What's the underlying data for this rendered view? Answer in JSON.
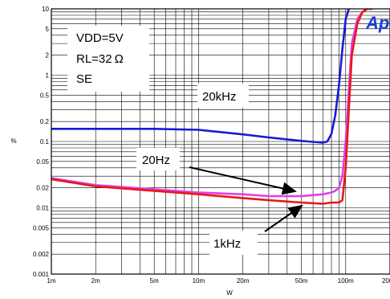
{
  "chart_data": {
    "type": "line",
    "xlabel": "W",
    "ylabel": "%",
    "x_scale": "log",
    "y_scale": "log",
    "xlim": [
      0.001,
      0.2
    ],
    "ylim": [
      0.001,
      10
    ],
    "grid": true,
    "x_ticks": [
      {
        "value": 0.001,
        "label": "1m"
      },
      {
        "value": 0.002,
        "label": "2m"
      },
      {
        "value": 0.005,
        "label": "5m"
      },
      {
        "value": 0.01,
        "label": "10m"
      },
      {
        "value": 0.02,
        "label": "20m"
      },
      {
        "value": 0.05,
        "label": "50m"
      },
      {
        "value": 0.1,
        "label": "100m"
      },
      {
        "value": 0.2,
        "label": "200m"
      }
    ],
    "y_ticks": [
      {
        "value": 10,
        "label": "10"
      },
      {
        "value": 5,
        "label": "5"
      },
      {
        "value": 2,
        "label": "2"
      },
      {
        "value": 1,
        "label": "1"
      },
      {
        "value": 0.5,
        "label": "0.5"
      },
      {
        "value": 0.2,
        "label": "0.2"
      },
      {
        "value": 0.1,
        "label": "0.1"
      },
      {
        "value": 0.05,
        "label": "0.05"
      },
      {
        "value": 0.02,
        "label": "0.02"
      },
      {
        "value": 0.01,
        "label": "0.01"
      },
      {
        "value": 0.005,
        "label": "0.005"
      },
      {
        "value": 0.002,
        "label": "0.002"
      },
      {
        "value": 0.001,
        "label": "0.001"
      }
    ],
    "series": [
      {
        "name": "20kHz",
        "color": "#1a1ad6",
        "x": [
          0.001,
          0.002,
          0.005,
          0.01,
          0.02,
          0.03,
          0.05,
          0.07,
          0.075,
          0.08,
          0.085,
          0.09,
          0.095,
          0.1,
          0.105
        ],
        "y": [
          0.155,
          0.155,
          0.155,
          0.15,
          0.128,
          0.115,
          0.102,
          0.096,
          0.1,
          0.13,
          0.25,
          0.7,
          2.5,
          7,
          10
        ]
      },
      {
        "name": "20Hz",
        "color": "#e23fe8",
        "x": [
          0.001,
          0.002,
          0.005,
          0.01,
          0.02,
          0.03,
          0.05,
          0.07,
          0.08,
          0.085,
          0.09,
          0.095,
          0.1,
          0.105,
          0.11,
          0.12,
          0.13,
          0.14,
          0.15
        ],
        "y": [
          0.028,
          0.022,
          0.019,
          0.017,
          0.016,
          0.015,
          0.015,
          0.016,
          0.017,
          0.018,
          0.02,
          0.03,
          0.1,
          0.6,
          3,
          7,
          9,
          10,
          10
        ]
      },
      {
        "name": "1kHz",
        "color": "#e81818",
        "x": [
          0.001,
          0.002,
          0.005,
          0.01,
          0.02,
          0.03,
          0.05,
          0.07,
          0.08,
          0.09,
          0.095,
          0.1,
          0.105,
          0.11,
          0.12,
          0.13,
          0.14,
          0.15
        ],
        "y": [
          0.027,
          0.021,
          0.018,
          0.016,
          0.014,
          0.013,
          0.012,
          0.0115,
          0.012,
          0.012,
          0.013,
          0.04,
          0.3,
          2,
          6,
          9,
          10,
          10
        ]
      }
    ],
    "annotations": {
      "conditions": [
        "VDD=5V",
        "RL=32 Ω",
        "SE"
      ],
      "label_20khz": "20kHz",
      "label_20hz": "20Hz",
      "label_1khz": "1kHz",
      "logo": "Ap"
    }
  }
}
